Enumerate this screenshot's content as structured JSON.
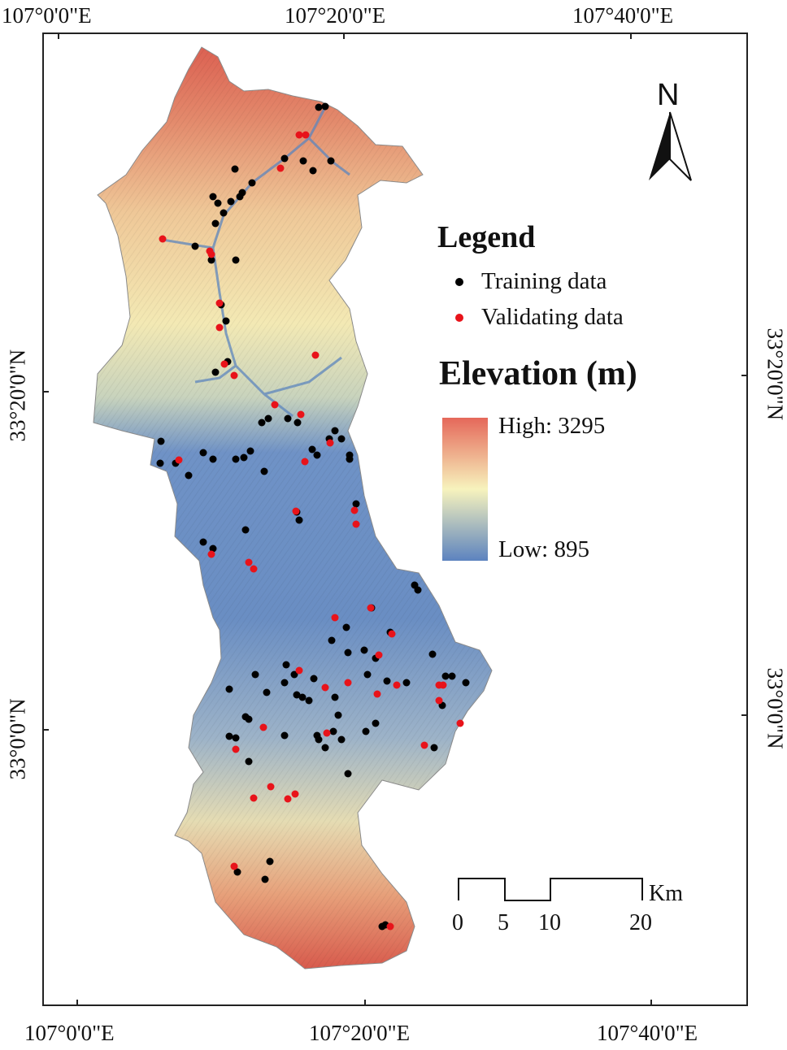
{
  "graticule": {
    "top_labels": [
      "107°0'0\"E",
      "107°20'0\"E",
      "107°40'0\"E"
    ],
    "bottom_labels": [
      "107°0'0\"E",
      "107°20'0\"E",
      "107°40'0\"E"
    ],
    "left_labels": [
      "33°20'0\"N",
      "33°0'0\"N"
    ],
    "right_labels": [
      "33°20'0\"N",
      "33°0'0\"N"
    ]
  },
  "legend": {
    "title": "Legend",
    "items": [
      {
        "label": "Training data",
        "color": "#000000"
      },
      {
        "label": "Validating data",
        "color": "#e8131a"
      }
    ]
  },
  "elevation": {
    "title": "Elevation (m)",
    "high_label": "High: 3295",
    "low_label": "Low: 895",
    "high_color": "#e5685a",
    "mid_color": "#f7f3bd",
    "low_color": "#5c83bf"
  },
  "north_arrow": {
    "label": "N",
    "icon": "north-arrow-icon"
  },
  "scale_bar": {
    "unit": "Km",
    "ticks": [
      "0",
      "5",
      "10",
      "20"
    ]
  }
}
